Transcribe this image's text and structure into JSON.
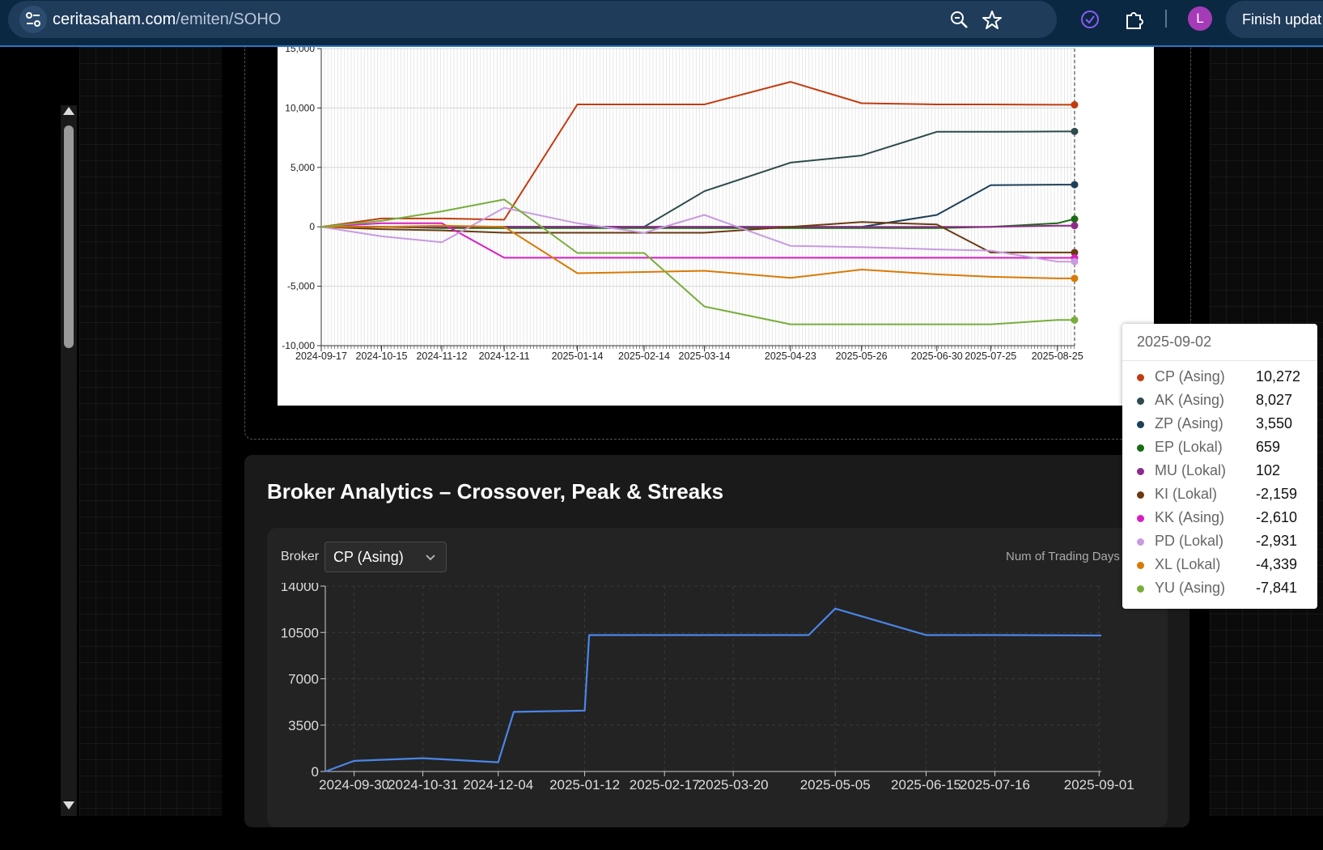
{
  "browser": {
    "url_domain": "ceritasaham.com",
    "url_path": "/emiten/SOHO",
    "avatar_initial": "L",
    "finish_button_label": "Finish updat"
  },
  "chart_data": [
    {
      "type": "line",
      "title": "",
      "xlabel": "",
      "ylabel": "",
      "ylim": [
        -10000,
        15000
      ],
      "yticks": [
        "15,000",
        "10,000",
        "5,000",
        "0",
        "-5,000",
        "-10,000"
      ],
      "xticks": [
        "2024-09-17",
        "2024-10-15",
        "2024-11-12",
        "2024-12-11",
        "2025-01-14",
        "2025-02-14",
        "2025-03-14",
        "2025-04-23",
        "2025-05-26",
        "2025-06-30",
        "2025-07-25",
        "2025-08-25"
      ],
      "grid": "vertical",
      "x": [
        "2024-09-17",
        "2024-10-15",
        "2024-11-12",
        "2024-12-11",
        "2025-01-14",
        "2025-02-14",
        "2025-03-14",
        "2025-04-23",
        "2025-05-26",
        "2025-06-30",
        "2025-07-25",
        "2025-08-25",
        "2025-09-02"
      ],
      "series": [
        {
          "name": "CP (Asing)",
          "color": "#c23b0f",
          "values": [
            0,
            700,
            700,
            600,
            10300,
            10300,
            10300,
            12200,
            10400,
            10300,
            10300,
            10272,
            10272
          ]
        },
        {
          "name": "AK (Asing)",
          "color": "#2e4a4c",
          "values": [
            0,
            0,
            0,
            0,
            0,
            0,
            3000,
            5400,
            6000,
            8000,
            8000,
            8027,
            8027
          ]
        },
        {
          "name": "ZP (Asing)",
          "color": "#1e3f58",
          "values": [
            0,
            0,
            0,
            0,
            0,
            0,
            0,
            0,
            0,
            1000,
            3500,
            3550,
            3550
          ]
        },
        {
          "name": "EP (Lokal)",
          "color": "#1b6b14",
          "values": [
            0,
            0,
            -100,
            -100,
            -100,
            -100,
            -100,
            -100,
            -100,
            -100,
            0,
            300,
            659
          ]
        },
        {
          "name": "MU (Lokal)",
          "color": "#8e2b8a",
          "values": [
            0,
            0,
            0,
            0,
            0,
            0,
            0,
            0,
            0,
            0,
            0,
            100,
            102
          ]
        },
        {
          "name": "KI (Lokal)",
          "color": "#6b3a12",
          "values": [
            0,
            -200,
            -300,
            -500,
            -500,
            -500,
            -500,
            0,
            400,
            200,
            -2159,
            -2159,
            -2159
          ]
        },
        {
          "name": "KK (Asing)",
          "color": "#d81fc4",
          "values": [
            0,
            300,
            300,
            -2600,
            -2600,
            -2600,
            -2600,
            -2600,
            -2600,
            -2600,
            -2600,
            -2610,
            -2610
          ]
        },
        {
          "name": "PD (Lokal)",
          "color": "#c79be0",
          "values": [
            0,
            -800,
            -1300,
            1600,
            300,
            -500,
            1000,
            -1600,
            -1700,
            -1900,
            -2000,
            -2931,
            -2931
          ]
        },
        {
          "name": "XL (Lokal)",
          "color": "#d97a06",
          "values": [
            0,
            0,
            100,
            0,
            -3900,
            -3800,
            -3700,
            -4300,
            -3600,
            -4000,
            -4200,
            -4339,
            -4339
          ]
        },
        {
          "name": "YU (Asing)",
          "color": "#78ad3c",
          "values": [
            0,
            500,
            1300,
            2300,
            -2200,
            -2200,
            -6700,
            -8200,
            -8200,
            -8200,
            -8200,
            -7841,
            -7841
          ]
        }
      ]
    },
    {
      "type": "line",
      "title": "",
      "xlabel": "",
      "ylabel": "",
      "ylim": [
        0,
        14000
      ],
      "yticks": [
        "14000",
        "10500",
        "7000",
        "3500",
        "0"
      ],
      "xticks": [
        "2024-09-30",
        "2024-10-31",
        "2024-12-04",
        "2025-01-12",
        "2025-02-17",
        "2025-03-20",
        "2025-05-05",
        "2025-06-15",
        "2025-07-16",
        "2025-09-01"
      ],
      "grid": "both",
      "color": "#4a86e8",
      "x": [
        "2024-09-17",
        "2024-09-30",
        "2024-10-31",
        "2024-12-04",
        "2024-12-11",
        "2025-01-12",
        "2025-01-14",
        "2025-02-17",
        "2025-03-20",
        "2025-04-23",
        "2025-05-05",
        "2025-06-15",
        "2025-07-16",
        "2025-09-01",
        "2025-09-02"
      ],
      "values": [
        0,
        800,
        1000,
        700,
        4500,
        4600,
        10300,
        10300,
        10300,
        10300,
        12300,
        10300,
        10300,
        10272,
        10272
      ]
    }
  ],
  "tooltip": {
    "date": "2025-09-02",
    "rows": [
      {
        "name": "CP (Asing)",
        "value": "10,272",
        "color": "#c23b0f"
      },
      {
        "name": "AK (Asing)",
        "value": "8,027",
        "color": "#2e4a4c"
      },
      {
        "name": "ZP (Asing)",
        "value": "3,550",
        "color": "#1e3f58"
      },
      {
        "name": "EP (Lokal)",
        "value": "659",
        "color": "#1b6b14"
      },
      {
        "name": "MU (Lokal)",
        "value": "102",
        "color": "#8e2b8a"
      },
      {
        "name": "KI (Lokal)",
        "value": "-2,159",
        "color": "#6b3a12"
      },
      {
        "name": "KK (Asing)",
        "value": "-2,610",
        "color": "#d81fc4"
      },
      {
        "name": "PD (Lokal)",
        "value": "-2,931",
        "color": "#c79be0"
      },
      {
        "name": "XL (Lokal)",
        "value": "-4,339",
        "color": "#d97a06"
      },
      {
        "name": "YU (Asing)",
        "value": "-7,841",
        "color": "#78ad3c"
      }
    ]
  },
  "analytics": {
    "title": "Broker Analytics – Crossover, Peak & Streaks",
    "broker_label": "Broker",
    "broker_selected": "CP (Asing)",
    "num_days_label": "Num of Trading Days"
  }
}
